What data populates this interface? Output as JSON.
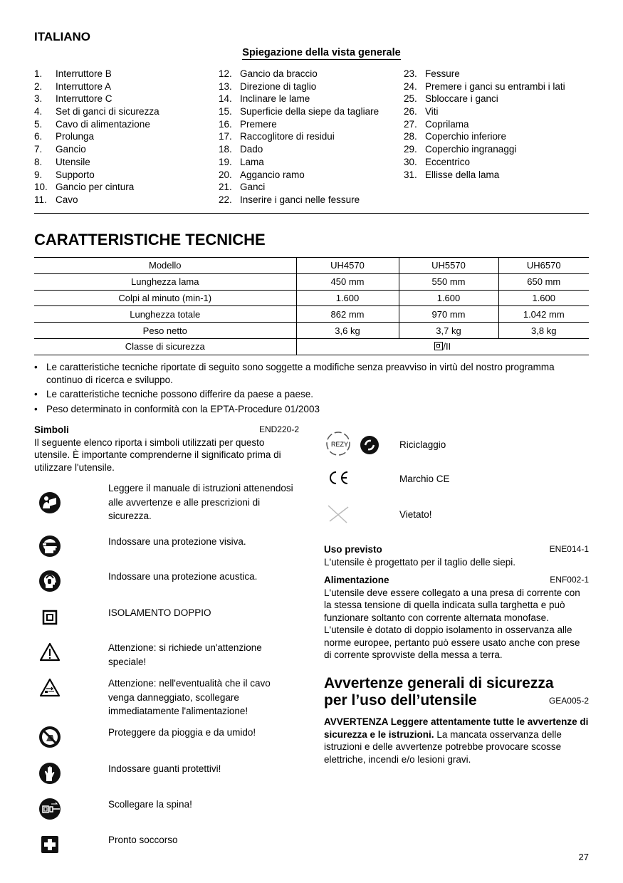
{
  "language": "ITALIANO",
  "overview": {
    "title": "Spiegazione della vista generale",
    "columns": [
      [
        "1.|Interruttore B",
        "2.|Interruttore A",
        "3.|Interruttore C",
        "4.|Set di ganci di sicurezza",
        "5.|Cavo di alimentazione",
        "6.|Prolunga",
        "7.|Gancio",
        "8.|Utensile",
        "9.|Supporto",
        "10.|Gancio per cintura",
        "11.|Cavo"
      ],
      [
        "12.|Gancio da braccio",
        "13.|Direzione di taglio",
        "14.|Inclinare le lame",
        "15.|Superficie della siepe da tagliare",
        "16.|Premere",
        "17.|Raccoglitore di residui",
        "18.|Dado",
        "19.|Lama",
        "20.|Aggancio ramo",
        "21.|Ganci",
        "22.|Inserire i ganci nelle fessure"
      ],
      [
        "23.|Fessure",
        "24.|Premere i ganci su entrambi i lati",
        "25.|Sbloccare i ganci",
        "26.|Viti",
        "27.|Coprilama",
        "28.|Coperchio inferiore",
        "29.|Coperchio ingranaggi",
        "30.|Eccentrico",
        "31.|Ellisse della lama"
      ]
    ]
  },
  "specs": {
    "title": "CARATTERISTICHE TECNICHE",
    "rows": [
      [
        "Modello",
        "UH4570",
        "UH5570",
        "UH6570"
      ],
      [
        "Lunghezza lama",
        "450 mm",
        "550 mm",
        "650 mm"
      ],
      [
        "Colpi al minuto (min-1)",
        "1.600",
        "1.600",
        "1.600"
      ],
      [
        "Lunghezza totale",
        "862 mm",
        "970 mm",
        "1.042 mm"
      ],
      [
        "Peso netto",
        "3,6 kg",
        "3,7 kg",
        "3,8 kg"
      ]
    ],
    "safety_class_label": "Classe di sicurezza",
    "safety_class_value": "/II",
    "notes": [
      "Le caratteristiche tecniche riportate di seguito sono soggette a modifiche senza preavviso in virtù del nostro programma continuo di ricerca e sviluppo.",
      "Le caratteristiche tecniche possono differire da paese a paese.",
      "Peso determinato in conformità con la EPTA-Procedure 01/2003"
    ]
  },
  "symbols": {
    "title": "Simboli",
    "code": "END220-2",
    "intro": "Il seguente elenco riporta i simboli utilizzati per questo utensile. È importante comprenderne il significato prima di utilizzare l'utensile.",
    "items": [
      {
        "icon": "read-manual-icon",
        "text": "Leggere il manuale di istruzioni attenendosi alle avvertenze e alle prescrizioni di sicurezza."
      },
      {
        "icon": "eye-protection-icon",
        "text": "Indossare una protezione visiva."
      },
      {
        "icon": "ear-protection-icon",
        "text": "Indossare una protezione acustica."
      },
      {
        "icon": "double-insulation-icon",
        "text": "ISOLAMENTO DOPPIO"
      },
      {
        "icon": "warning-icon",
        "text": "Attenzione: si richiede un'attenzione speciale!"
      },
      {
        "icon": "cable-warning-icon",
        "text": "Attenzione: nell'eventualità  che il cavo venga danneggiato, scollegare immediatamente l'alimentazione!"
      },
      {
        "icon": "no-rain-icon",
        "text": "Proteggere da pioggia e da umido!"
      },
      {
        "icon": "gloves-icon",
        "text": "Indossare guanti protettivi!"
      },
      {
        "icon": "unplug-icon",
        "text": "Scollegare la spina!"
      },
      {
        "icon": "first-aid-icon",
        "text": "Pronto soccorso"
      }
    ],
    "right_items": [
      {
        "icon": "recycling-icon",
        "text": "Riciclaggio"
      },
      {
        "icon": "ce-mark-icon",
        "text": "Marchio CE"
      },
      {
        "icon": "prohibited-icon",
        "text": "Vietato!"
      }
    ]
  },
  "intended_use": {
    "title": "Uso previsto",
    "code": "ENE014-1",
    "text": "L'utensile è progettato per il taglio delle siepi."
  },
  "power": {
    "title": "Alimentazione",
    "code": "ENF002-1",
    "text": "L'utensile deve essere collegato a una presa di corrente con la stessa tensione di quella indicata sulla targhetta e può funzionare soltanto con corrente alternata monofase. L'utensile è dotato di doppio isolamento in osservanza alle norme europee, pertanto può essere usato anche con prese di corrente sprovviste della messa a terra."
  },
  "warnings": {
    "title_line1": "Avvertenze generali di sicurezza",
    "title_line2": "per l’uso dell’utensile",
    "code": "GEA005-2",
    "bold": "AVVERTENZA Leggere attentamente tutte le avvertenze di sicurezza e le istruzioni.",
    "text": " La mancata osservanza delle istruzioni e delle avvertenze potrebbe provocare scosse elettriche, incendi e/o lesioni gravi."
  },
  "page_number": "27"
}
